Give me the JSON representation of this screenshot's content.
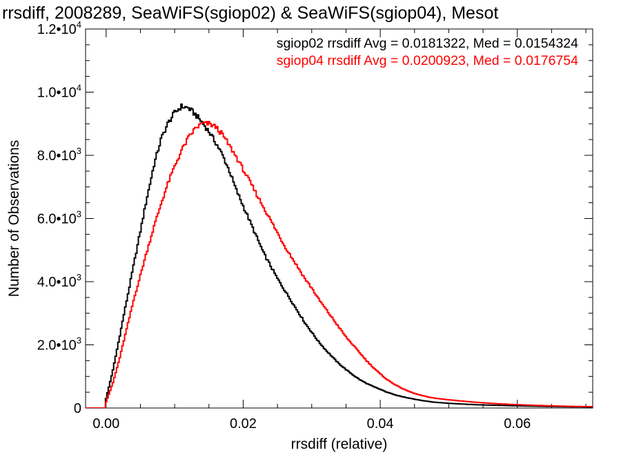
{
  "chart_data": {
    "type": "line",
    "title": "rrsdiff, 2008289, SeaWiFS(sgiop02) & SeaWiFS(sgiop04), Mesot",
    "xlabel": "rrsdiff (relative)",
    "ylabel": "Number of Observations",
    "xlim": [
      -0.003,
      0.071
    ],
    "ylim": [
      0,
      12000
    ],
    "x_ticks": [
      0.0,
      0.02,
      0.04,
      0.06
    ],
    "x_tick_labels": [
      "0.00",
      "0.02",
      "0.04",
      "0.06"
    ],
    "y_ticks": [
      0,
      2000,
      4000,
      6000,
      8000,
      10000,
      12000
    ],
    "y_tick_labels": [
      {
        "mantissa": "0",
        "exp": ""
      },
      {
        "mantissa": "2.0•10",
        "exp": "3"
      },
      {
        "mantissa": "4.0•10",
        "exp": "3"
      },
      {
        "mantissa": "6.0•10",
        "exp": "3"
      },
      {
        "mantissa": "8.0•10",
        "exp": "3"
      },
      {
        "mantissa": "1.0•10",
        "exp": "4"
      },
      {
        "mantissa": "1.2•10",
        "exp": "4"
      }
    ],
    "grid": false,
    "legend_position": "top-right",
    "series": [
      {
        "name": "sgiop02",
        "color": "#000000",
        "legend": "sgiop02 rrsdiff Avg = 0.0181322, Med = 0.0154324",
        "points": [
          [
            -0.0001,
            0
          ],
          [
            0.0,
            300
          ],
          [
            0.001,
            1200
          ],
          [
            0.002,
            2300
          ],
          [
            0.003,
            3400
          ],
          [
            0.004,
            4500
          ],
          [
            0.005,
            5600
          ],
          [
            0.006,
            6700
          ],
          [
            0.007,
            7700
          ],
          [
            0.008,
            8500
          ],
          [
            0.009,
            9000
          ],
          [
            0.01,
            9350
          ],
          [
            0.011,
            9550
          ],
          [
            0.012,
            9500
          ],
          [
            0.013,
            9300
          ],
          [
            0.014,
            9050
          ],
          [
            0.015,
            8750
          ],
          [
            0.016,
            8400
          ],
          [
            0.017,
            8000
          ],
          [
            0.018,
            7500
          ],
          [
            0.019,
            6900
          ],
          [
            0.02,
            6400
          ],
          [
            0.021,
            5900
          ],
          [
            0.022,
            5400
          ],
          [
            0.023,
            4900
          ],
          [
            0.024,
            4500
          ],
          [
            0.025,
            4100
          ],
          [
            0.026,
            3750
          ],
          [
            0.027,
            3400
          ],
          [
            0.028,
            3050
          ],
          [
            0.029,
            2700
          ],
          [
            0.03,
            2400
          ],
          [
            0.031,
            2100
          ],
          [
            0.032,
            1850
          ],
          [
            0.033,
            1620
          ],
          [
            0.034,
            1400
          ],
          [
            0.035,
            1220
          ],
          [
            0.036,
            1050
          ],
          [
            0.037,
            900
          ],
          [
            0.038,
            780
          ],
          [
            0.039,
            680
          ],
          [
            0.04,
            590
          ],
          [
            0.041,
            500
          ],
          [
            0.042,
            430
          ],
          [
            0.043,
            370
          ],
          [
            0.044,
            320
          ],
          [
            0.045,
            280
          ],
          [
            0.046,
            240
          ],
          [
            0.047,
            210
          ],
          [
            0.048,
            180
          ],
          [
            0.05,
            150
          ],
          [
            0.052,
            125
          ],
          [
            0.054,
            105
          ],
          [
            0.056,
            90
          ],
          [
            0.058,
            80
          ],
          [
            0.06,
            70
          ],
          [
            0.062,
            60
          ],
          [
            0.064,
            52
          ],
          [
            0.066,
            45
          ],
          [
            0.068,
            40
          ],
          [
            0.07,
            35
          ],
          [
            0.071,
            32
          ]
        ]
      },
      {
        "name": "sgiop04",
        "color": "#ff0000",
        "legend": "sgiop04 rrsdiff Avg = 0.0200923, Med = 0.0176754",
        "points": [
          [
            -0.0001,
            0
          ],
          [
            0.0,
            200
          ],
          [
            0.001,
            800
          ],
          [
            0.002,
            1600
          ],
          [
            0.003,
            2500
          ],
          [
            0.004,
            3400
          ],
          [
            0.005,
            4200
          ],
          [
            0.006,
            5000
          ],
          [
            0.007,
            5750
          ],
          [
            0.008,
            6450
          ],
          [
            0.009,
            7100
          ],
          [
            0.01,
            7650
          ],
          [
            0.011,
            8150
          ],
          [
            0.012,
            8550
          ],
          [
            0.013,
            8850
          ],
          [
            0.014,
            9000
          ],
          [
            0.015,
            9000
          ],
          [
            0.016,
            8900
          ],
          [
            0.017,
            8650
          ],
          [
            0.018,
            8300
          ],
          [
            0.019,
            7950
          ],
          [
            0.02,
            7550
          ],
          [
            0.021,
            7150
          ],
          [
            0.022,
            6750
          ],
          [
            0.023,
            6350
          ],
          [
            0.024,
            5950
          ],
          [
            0.025,
            5550
          ],
          [
            0.026,
            5150
          ],
          [
            0.027,
            4800
          ],
          [
            0.028,
            4450
          ],
          [
            0.029,
            4100
          ],
          [
            0.03,
            3800
          ],
          [
            0.031,
            3450
          ],
          [
            0.032,
            3150
          ],
          [
            0.033,
            2850
          ],
          [
            0.034,
            2550
          ],
          [
            0.035,
            2250
          ],
          [
            0.036,
            2000
          ],
          [
            0.037,
            1750
          ],
          [
            0.038,
            1500
          ],
          [
            0.039,
            1280
          ],
          [
            0.04,
            1080
          ],
          [
            0.041,
            900
          ],
          [
            0.042,
            760
          ],
          [
            0.043,
            640
          ],
          [
            0.044,
            540
          ],
          [
            0.045,
            460
          ],
          [
            0.046,
            400
          ],
          [
            0.047,
            350
          ],
          [
            0.048,
            310
          ],
          [
            0.05,
            260
          ],
          [
            0.052,
            220
          ],
          [
            0.054,
            180
          ],
          [
            0.056,
            150
          ],
          [
            0.058,
            125
          ],
          [
            0.06,
            105
          ],
          [
            0.062,
            90
          ],
          [
            0.064,
            75
          ],
          [
            0.066,
            62
          ],
          [
            0.068,
            52
          ],
          [
            0.07,
            45
          ],
          [
            0.071,
            42
          ]
        ]
      }
    ]
  }
}
